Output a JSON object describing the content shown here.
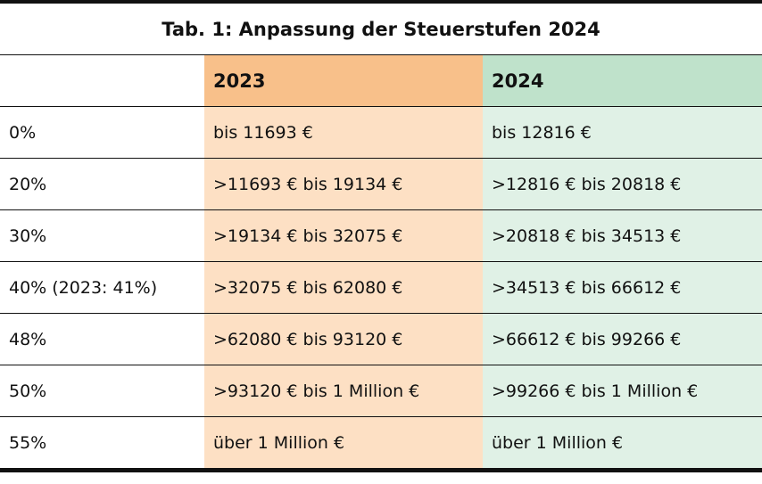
{
  "title": "Tab. 1: Anpassung der Steuerstufen 2024",
  "header": {
    "col0": "",
    "col1": "2023",
    "col2": "2024"
  },
  "rows": [
    {
      "rate": "0%",
      "y2023": "bis 11693 €",
      "y2024": "bis 12816 €"
    },
    {
      "rate": "20%",
      "y2023": ">11693 € bis 19134 €",
      "y2024": ">12816 €  bis 20818 €"
    },
    {
      "rate": "30%",
      "y2023": ">19134 €  bis 32075 €",
      "y2024": ">20818 € bis 34513 €"
    },
    {
      "rate": "40% (2023: 41%)",
      "y2023": ">32075 €  bis 62080 €",
      "y2024": ">34513 € bis 66612 €"
    },
    {
      "rate": "48%",
      "y2023": ">62080 € bis 93120 €",
      "y2024": ">66612 € bis 99266 €"
    },
    {
      "rate": "50%",
      "y2023": ">93120 € bis 1 Million €",
      "y2024": ">99266 € bis 1 Million €"
    },
    {
      "rate": "55%",
      "y2023": "über 1 Million €",
      "y2024": "über 1 Million €"
    }
  ],
  "colors": {
    "header_2023": "#f8c08a",
    "cell_2023": "#fde0c4",
    "header_2024": "#bfe2cb",
    "cell_2024": "#e0f1e6",
    "rule": "#111111"
  }
}
